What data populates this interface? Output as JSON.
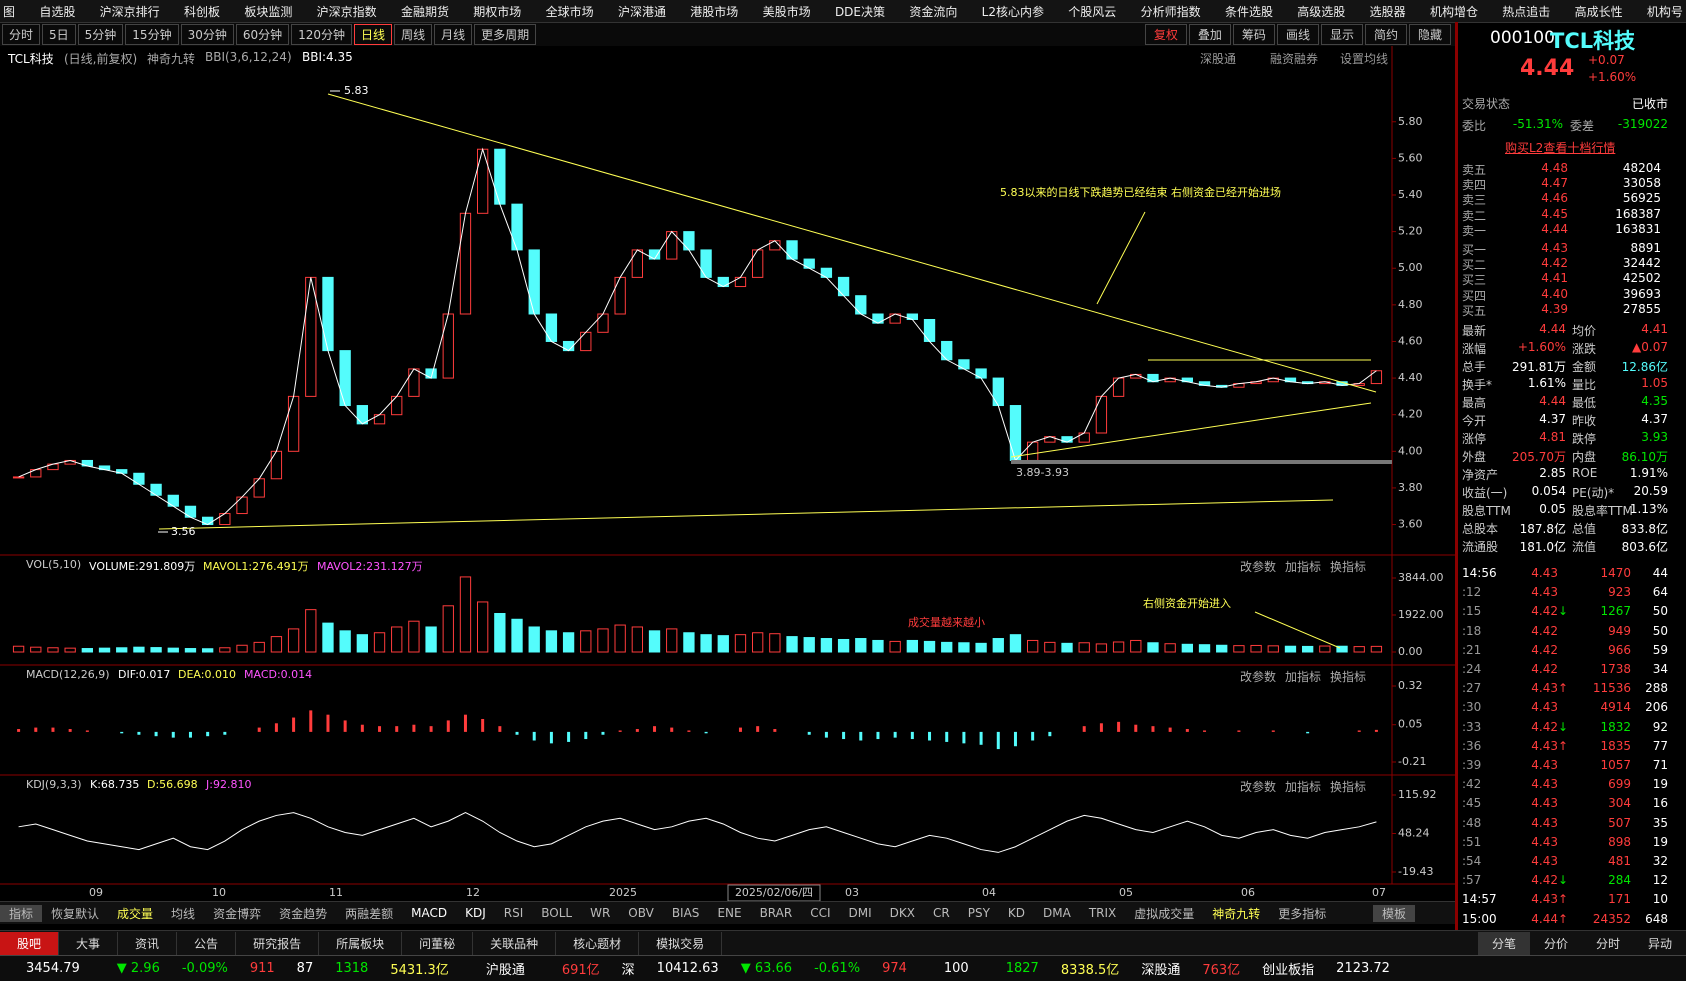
{
  "menu": [
    "图",
    "自选股",
    "沪深京排行",
    "科创板",
    "板块监测",
    "沪深京指数",
    "金融期货",
    "期权市场",
    "全球市场",
    "沪深港通",
    "港股市场",
    "美股市场",
    "DDE决策",
    "资金流向",
    "L2核心内参",
    "个股风云",
    "分析师指数",
    "条件选股",
    "高级选股",
    "选股器",
    "机构增仓",
    "热点追击",
    "高成长性",
    "机构号"
  ],
  "toolbar": {
    "periods": [
      "分时",
      "5日",
      "5分钟",
      "15分钟",
      "30分钟",
      "60分钟",
      "120分钟",
      "日线",
      "周线",
      "月线",
      "更多周期"
    ],
    "right": [
      "复权",
      "叠加",
      "筹码",
      "画线",
      "显示",
      "简约",
      "隐藏"
    ]
  },
  "header": {
    "stock": "TCL科技",
    "mode": "(日线,前复权)",
    "nine": "神奇九转",
    "bbi_name": "BBI(3,6,12,24)",
    "bbi": "BBI:4.35",
    "links": [
      "深股通",
      "融资融券",
      "设置均线"
    ]
  },
  "price_chart": {
    "type": "candlestick",
    "values": [
      3.86,
      3.9,
      3.93,
      3.95,
      3.92,
      3.9,
      3.88,
      3.82,
      3.76,
      3.7,
      3.64,
      3.6,
      3.66,
      3.75,
      3.85,
      4.0,
      4.3,
      4.95,
      4.55,
      4.25,
      4.15,
      4.2,
      4.3,
      4.45,
      4.4,
      4.75,
      5.3,
      5.65,
      5.35,
      5.1,
      4.75,
      4.6,
      4.55,
      4.65,
      4.75,
      4.95,
      5.1,
      5.05,
      5.2,
      5.1,
      4.95,
      4.9,
      4.95,
      5.1,
      5.15,
      5.05,
      5.0,
      4.95,
      4.85,
      4.75,
      4.7,
      4.75,
      4.72,
      4.6,
      4.5,
      4.45,
      4.4,
      4.25,
      3.95,
      4.05,
      4.08,
      4.05,
      4.1,
      4.3,
      4.4,
      4.42,
      4.38,
      4.4,
      4.38,
      4.36,
      4.35,
      4.37,
      4.38,
      4.4,
      4.38,
      4.37,
      4.38,
      4.36,
      4.37,
      4.44
    ],
    "ylim": [
      3.45,
      6.05
    ],
    "yticks": [
      {
        "value": 5.8,
        "label": "5.80"
      },
      {
        "value": 5.6,
        "label": "5.60"
      },
      {
        "value": 5.4,
        "label": "5.40"
      },
      {
        "value": 5.2,
        "label": "5.20"
      },
      {
        "value": 5.0,
        "label": "5.00"
      },
      {
        "value": 4.8,
        "label": "4.80"
      },
      {
        "value": 4.6,
        "label": "4.60"
      },
      {
        "value": 4.4,
        "label": "4.40"
      },
      {
        "value": 4.2,
        "label": "4.20"
      },
      {
        "value": 4.0,
        "label": "4.00"
      },
      {
        "value": 3.8,
        "label": "3.80"
      },
      {
        "value": 3.6,
        "label": "3.60"
      }
    ],
    "annotations": {
      "target": "5.83以来的日线下跌趋势已经结束 右侧资金已经开始进场",
      "high": "5.83",
      "low": "3.56",
      "range": "3.89-3.93"
    }
  },
  "volume_chart": {
    "type": "bar",
    "header": [
      "VOL(5,10)",
      "VOLUME:291.809万",
      "MAVOL1:276.491万",
      "MAVOL2:231.127万"
    ],
    "values": [
      300,
      250,
      220,
      200,
      180,
      200,
      220,
      250,
      230,
      200,
      180,
      170,
      220,
      350,
      500,
      800,
      1200,
      2200,
      1500,
      1100,
      900,
      1000,
      1300,
      1600,
      1300,
      2400,
      3900,
      2600,
      2000,
      1700,
      1300,
      1100,
      1000,
      1100,
      1200,
      1400,
      1300,
      1100,
      1200,
      1000,
      900,
      850,
      900,
      1000,
      950,
      800,
      750,
      700,
      650,
      700,
      600,
      550,
      600,
      550,
      500,
      480,
      450,
      700,
      900,
      600,
      500,
      450,
      480,
      420,
      520,
      600,
      480,
      430,
      400,
      380,
      350,
      330,
      340,
      320,
      300,
      290,
      310,
      300,
      280,
      292
    ],
    "ylim": [
      0,
      3844
    ],
    "yticks": [
      {
        "value": 3844,
        "label": "3844.00"
      },
      {
        "value": 1922,
        "label": "1922.00"
      },
      {
        "value": 0,
        "label": "0.00"
      }
    ],
    "annotations": [
      "成交量越来越小",
      "右侧资金开始进入"
    ]
  },
  "macd_chart": {
    "type": "bar",
    "header": [
      "MACD(12,26,9)",
      "DIF:0.017",
      "DEA:0.010",
      "MACD:0.014"
    ],
    "values": [
      0.02,
      0.03,
      0.03,
      0.02,
      0.01,
      0.0,
      -0.01,
      -0.02,
      -0.03,
      -0.04,
      -0.04,
      -0.03,
      -0.02,
      0.0,
      0.03,
      0.06,
      0.1,
      0.15,
      0.12,
      0.08,
      0.05,
      0.04,
      0.04,
      0.05,
      0.04,
      0.08,
      0.12,
      0.09,
      0.04,
      -0.02,
      -0.06,
      -0.08,
      -0.07,
      -0.05,
      -0.02,
      0.01,
      0.02,
      0.04,
      0.03,
      0.01,
      -0.01,
      0.0,
      0.03,
      0.04,
      0.02,
      0.0,
      -0.02,
      -0.04,
      -0.05,
      -0.06,
      -0.05,
      -0.04,
      -0.05,
      -0.06,
      -0.07,
      -0.08,
      -0.09,
      -0.12,
      -0.1,
      -0.06,
      -0.03,
      0.0,
      0.04,
      0.06,
      0.07,
      0.05,
      0.04,
      0.03,
      0.02,
      0.01,
      0.0,
      0.01,
      0.0,
      0.01,
      0.0,
      -0.01,
      0.0,
      0.0,
      0.01,
      0.014
    ],
    "ylim": [
      -0.21,
      0.32
    ],
    "yticks": [
      0.32,
      0.05,
      -0.21
    ]
  },
  "kdj_chart": {
    "type": "line",
    "header": [
      "KDJ(9,3,3)",
      "K:68.735",
      "D:56.698",
      "J:92.810"
    ],
    "values": [
      60,
      65,
      55,
      45,
      35,
      30,
      25,
      20,
      30,
      40,
      25,
      20,
      35,
      55,
      70,
      80,
      85,
      75,
      60,
      50,
      45,
      55,
      65,
      75,
      60,
      70,
      85,
      70,
      50,
      35,
      25,
      30,
      45,
      60,
      70,
      75,
      65,
      55,
      60,
      70,
      75,
      65,
      50,
      40,
      35,
      45,
      55,
      60,
      50,
      40,
      30,
      25,
      35,
      45,
      40,
      30,
      20,
      15,
      25,
      40,
      55,
      70,
      80,
      75,
      65,
      55,
      50,
      60,
      70,
      60,
      45,
      40,
      50,
      55,
      45,
      40,
      50,
      55,
      60,
      68.735
    ],
    "ylim": [
      -19.43,
      115.92
    ],
    "yticks": [
      115.92,
      48.24,
      -19.43
    ]
  },
  "panel_buttons": [
    "改参数",
    "加指标",
    "换指标"
  ],
  "dates": [
    "09",
    "10",
    "11",
    "12",
    "2025",
    "2025/02/06/四",
    "03",
    "04",
    "05",
    "06",
    "07"
  ],
  "indicators": [
    "指标",
    "恢复默认",
    "成交量",
    "均线",
    "资金博弈",
    "资金趋势",
    "两融差额",
    "MACD",
    "KDJ",
    "RSI",
    "BOLL",
    "WR",
    "OBV",
    "BIAS",
    "ENE",
    "BRAR",
    "CCI",
    "DMI",
    "DKX",
    "CR",
    "PSY",
    "KD",
    "DMA",
    "TRIX",
    "虚拟成交量",
    "神奇九转",
    "更多指标",
    "模板"
  ],
  "bottom_tabs": [
    "股吧",
    "大事",
    "资讯",
    "公告",
    "研究报告",
    "所属板块",
    "问董秘",
    "关联品种",
    "核心题材",
    "模拟交易"
  ],
  "bottom_right_tabs": [
    "分笔",
    "分价",
    "分时",
    "异动"
  ],
  "status": [
    "3454.79",
    "▼ 2.96",
    "-0.09%",
    "911",
    "87",
    "1318",
    "5431.3亿",
    "沪股通",
    "691亿",
    "深",
    "10412.63",
    "▼ 63.66",
    "-0.61%",
    "974",
    "100",
    "1827",
    "8338.5亿",
    "深股通",
    "763亿",
    "创业板指",
    "2123.72"
  ],
  "quote": {
    "code": "000100",
    "name": "TCL科技",
    "price": "4.44",
    "change": "+0.07",
    "pct": "+1.60%",
    "state_label": "交易状态",
    "state": "已收市",
    "wb_label": "委比",
    "wb": "-51.31%",
    "wc_label": "委差",
    "wc": "-319022",
    "l2": "购买L2查看十档行情"
  },
  "order_book": {
    "sell": [
      [
        "卖五",
        "4.48",
        "48204"
      ],
      [
        "卖四",
        "4.47",
        "33058"
      ],
      [
        "卖三",
        "4.46",
        "56925"
      ],
      [
        "卖二",
        "4.45",
        "168387"
      ],
      [
        "卖一",
        "4.44",
        "163831"
      ]
    ],
    "buy": [
      [
        "买一",
        "4.43",
        "8891"
      ],
      [
        "买二",
        "4.42",
        "32442"
      ],
      [
        "买三",
        "4.41",
        "42502"
      ],
      [
        "买四",
        "4.40",
        "39693"
      ],
      [
        "买五",
        "4.39",
        "27855"
      ]
    ]
  },
  "stats": [
    [
      "最新",
      "4.44",
      "均价",
      "4.41"
    ],
    [
      "涨幅",
      "+1.60%",
      "涨跌",
      "▲0.07"
    ],
    [
      "总手",
      "291.81万",
      "金额",
      "12.86亿"
    ],
    [
      "换手*",
      "1.61%",
      "量比",
      "1.05"
    ],
    [
      "最高",
      "4.44",
      "最低",
      "4.35"
    ],
    [
      "今开",
      "4.37",
      "昨收",
      "4.37"
    ],
    [
      "涨停",
      "4.81",
      "跌停",
      "3.93"
    ],
    [
      "外盘",
      "205.70万",
      "内盘",
      "86.10万"
    ],
    [
      "净资产",
      "2.85",
      "ROE",
      "1.91%"
    ],
    [
      "收益(一)",
      "0.054",
      "PE(动)*",
      "20.59"
    ],
    [
      "股息TTM",
      "0.05",
      "股息率TTM",
      "1.13%"
    ],
    [
      "总股本",
      "187.8亿",
      "总值",
      "833.8亿"
    ],
    [
      "流通股",
      "181.0亿",
      "流值",
      "803.6亿"
    ]
  ],
  "ticks": [
    {
      "t": "14:56",
      "p": "4.43",
      "v": "1470",
      "n": "44"
    },
    {
      "t": ":12",
      "p": "4.43",
      "v": "923",
      "n": "64"
    },
    {
      "t": ":15",
      "p": "4.42",
      "a": "↓",
      "v": "1267",
      "n": "50"
    },
    {
      "t": ":18",
      "p": "4.42",
      "v": "949",
      "n": "50"
    },
    {
      "t": ":21",
      "p": "4.42",
      "v": "966",
      "n": "59"
    },
    {
      "t": ":24",
      "p": "4.42",
      "v": "1738",
      "n": "34"
    },
    {
      "t": ":27",
      "p": "4.43",
      "a": "↑",
      "v": "11536",
      "n": "288"
    },
    {
      "t": ":30",
      "p": "4.43",
      "v": "4914",
      "n": "206"
    },
    {
      "t": ":33",
      "p": "4.42",
      "a": "↓",
      "v": "1832",
      "n": "92"
    },
    {
      "t": ":36",
      "p": "4.43",
      "a": "↑",
      "v": "1835",
      "n": "77"
    },
    {
      "t": ":39",
      "p": "4.43",
      "v": "1057",
      "n": "71"
    },
    {
      "t": ":42",
      "p": "4.43",
      "v": "699",
      "n": "19"
    },
    {
      "t": ":45",
      "p": "4.43",
      "v": "304",
      "n": "16"
    },
    {
      "t": ":48",
      "p": "4.43",
      "v": "507",
      "n": "35"
    },
    {
      "t": ":51",
      "p": "4.43",
      "v": "898",
      "n": "19"
    },
    {
      "t": ":54",
      "p": "4.43",
      "v": "481",
      "n": "32"
    },
    {
      "t": ":57",
      "p": "4.42",
      "a": "↓",
      "v": "284",
      "n": "12"
    },
    {
      "t": "14:57",
      "p": "4.43",
      "a": "↑",
      "v": "171",
      "n": "10"
    },
    {
      "t": "15:00",
      "p": "4.44",
      "a": "↑",
      "v": "24352",
      "n": "648"
    }
  ]
}
